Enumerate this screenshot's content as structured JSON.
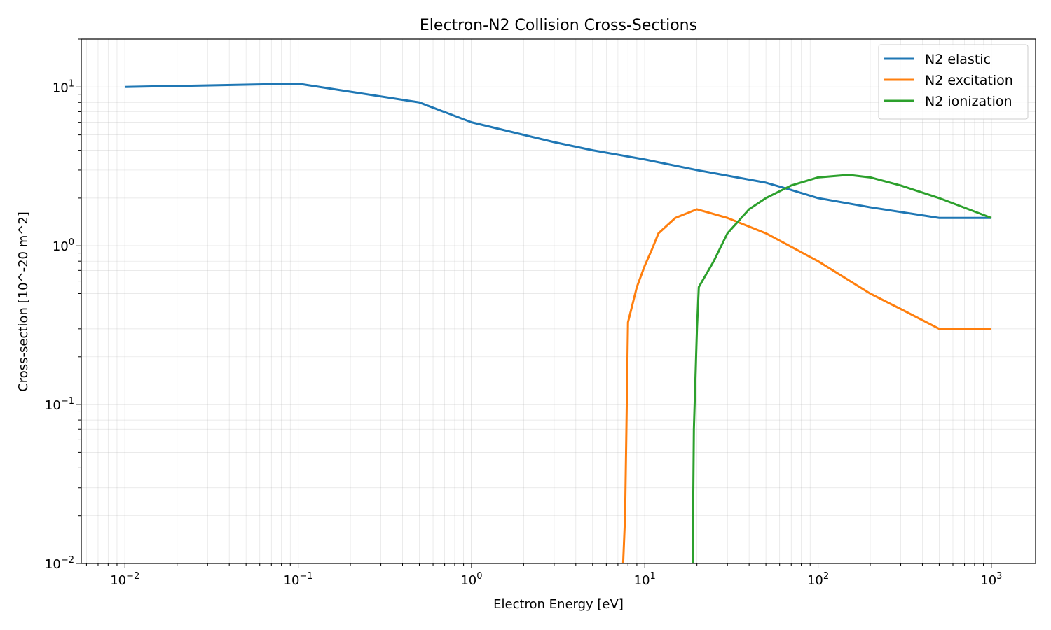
{
  "chart_data": {
    "type": "line",
    "title": "Electron-N2 Collision Cross-Sections",
    "xlabel": "Electron Energy [eV]",
    "ylabel": "Cross-section [10^-20 m^2]",
    "xscale": "log",
    "yscale": "log",
    "xlim": [
      0.0056,
      1800
    ],
    "ylim": [
      0.01,
      20
    ],
    "grid": "on (major and minor)",
    "legend_position": "top-right",
    "x_ticks": [
      {
        "value": 0.01,
        "base": "10",
        "exp": "−2"
      },
      {
        "value": 0.1,
        "base": "10",
        "exp": "−1"
      },
      {
        "value": 1,
        "base": "10",
        "exp": "0"
      },
      {
        "value": 10,
        "base": "10",
        "exp": "1"
      },
      {
        "value": 100,
        "base": "10",
        "exp": "2"
      },
      {
        "value": 1000,
        "base": "10",
        "exp": "3"
      }
    ],
    "y_ticks": [
      {
        "value": 0.01,
        "base": "10",
        "exp": "−2"
      },
      {
        "value": 0.1,
        "base": "10",
        "exp": "−1"
      },
      {
        "value": 1,
        "base": "10",
        "exp": "0"
      },
      {
        "value": 10,
        "base": "10",
        "exp": "1"
      }
    ],
    "series": [
      {
        "name": "N2 elastic",
        "color": "#1f77b4",
        "points": [
          [
            0.01,
            10.0
          ],
          [
            0.1,
            10.5
          ],
          [
            0.5,
            8.0
          ],
          [
            1,
            6.0
          ],
          [
            3,
            4.5
          ],
          [
            5,
            4.0
          ],
          [
            10,
            3.5
          ],
          [
            20,
            3.0
          ],
          [
            50,
            2.5
          ],
          [
            70,
            2.25
          ],
          [
            100,
            2.0
          ],
          [
            200,
            1.75
          ],
          [
            500,
            1.5
          ],
          [
            1000,
            1.5
          ]
        ]
      },
      {
        "name": "N2 excitation",
        "color": "#ff7f0e",
        "points": [
          [
            7.5,
            0.01
          ],
          [
            7.7,
            0.02
          ],
          [
            8.0,
            0.33
          ],
          [
            9,
            0.55
          ],
          [
            10,
            0.75
          ],
          [
            11,
            0.95
          ],
          [
            12,
            1.2
          ],
          [
            15,
            1.5
          ],
          [
            20,
            1.7
          ],
          [
            30,
            1.5
          ],
          [
            50,
            1.2
          ],
          [
            100,
            0.8
          ],
          [
            200,
            0.5
          ],
          [
            300,
            0.4
          ],
          [
            500,
            0.3
          ],
          [
            1000,
            0.3
          ]
        ]
      },
      {
        "name": "N2 ionization",
        "color": "#2ca02c",
        "points": [
          [
            18.9,
            0.01
          ],
          [
            19.2,
            0.07
          ],
          [
            20,
            0.3
          ],
          [
            20.5,
            0.55
          ],
          [
            25,
            0.8
          ],
          [
            30,
            1.2
          ],
          [
            40,
            1.7
          ],
          [
            50,
            2.0
          ],
          [
            70,
            2.4
          ],
          [
            100,
            2.7
          ],
          [
            150,
            2.8
          ],
          [
            200,
            2.7
          ],
          [
            300,
            2.4
          ],
          [
            500,
            2.0
          ],
          [
            1000,
            1.5
          ]
        ]
      }
    ]
  }
}
